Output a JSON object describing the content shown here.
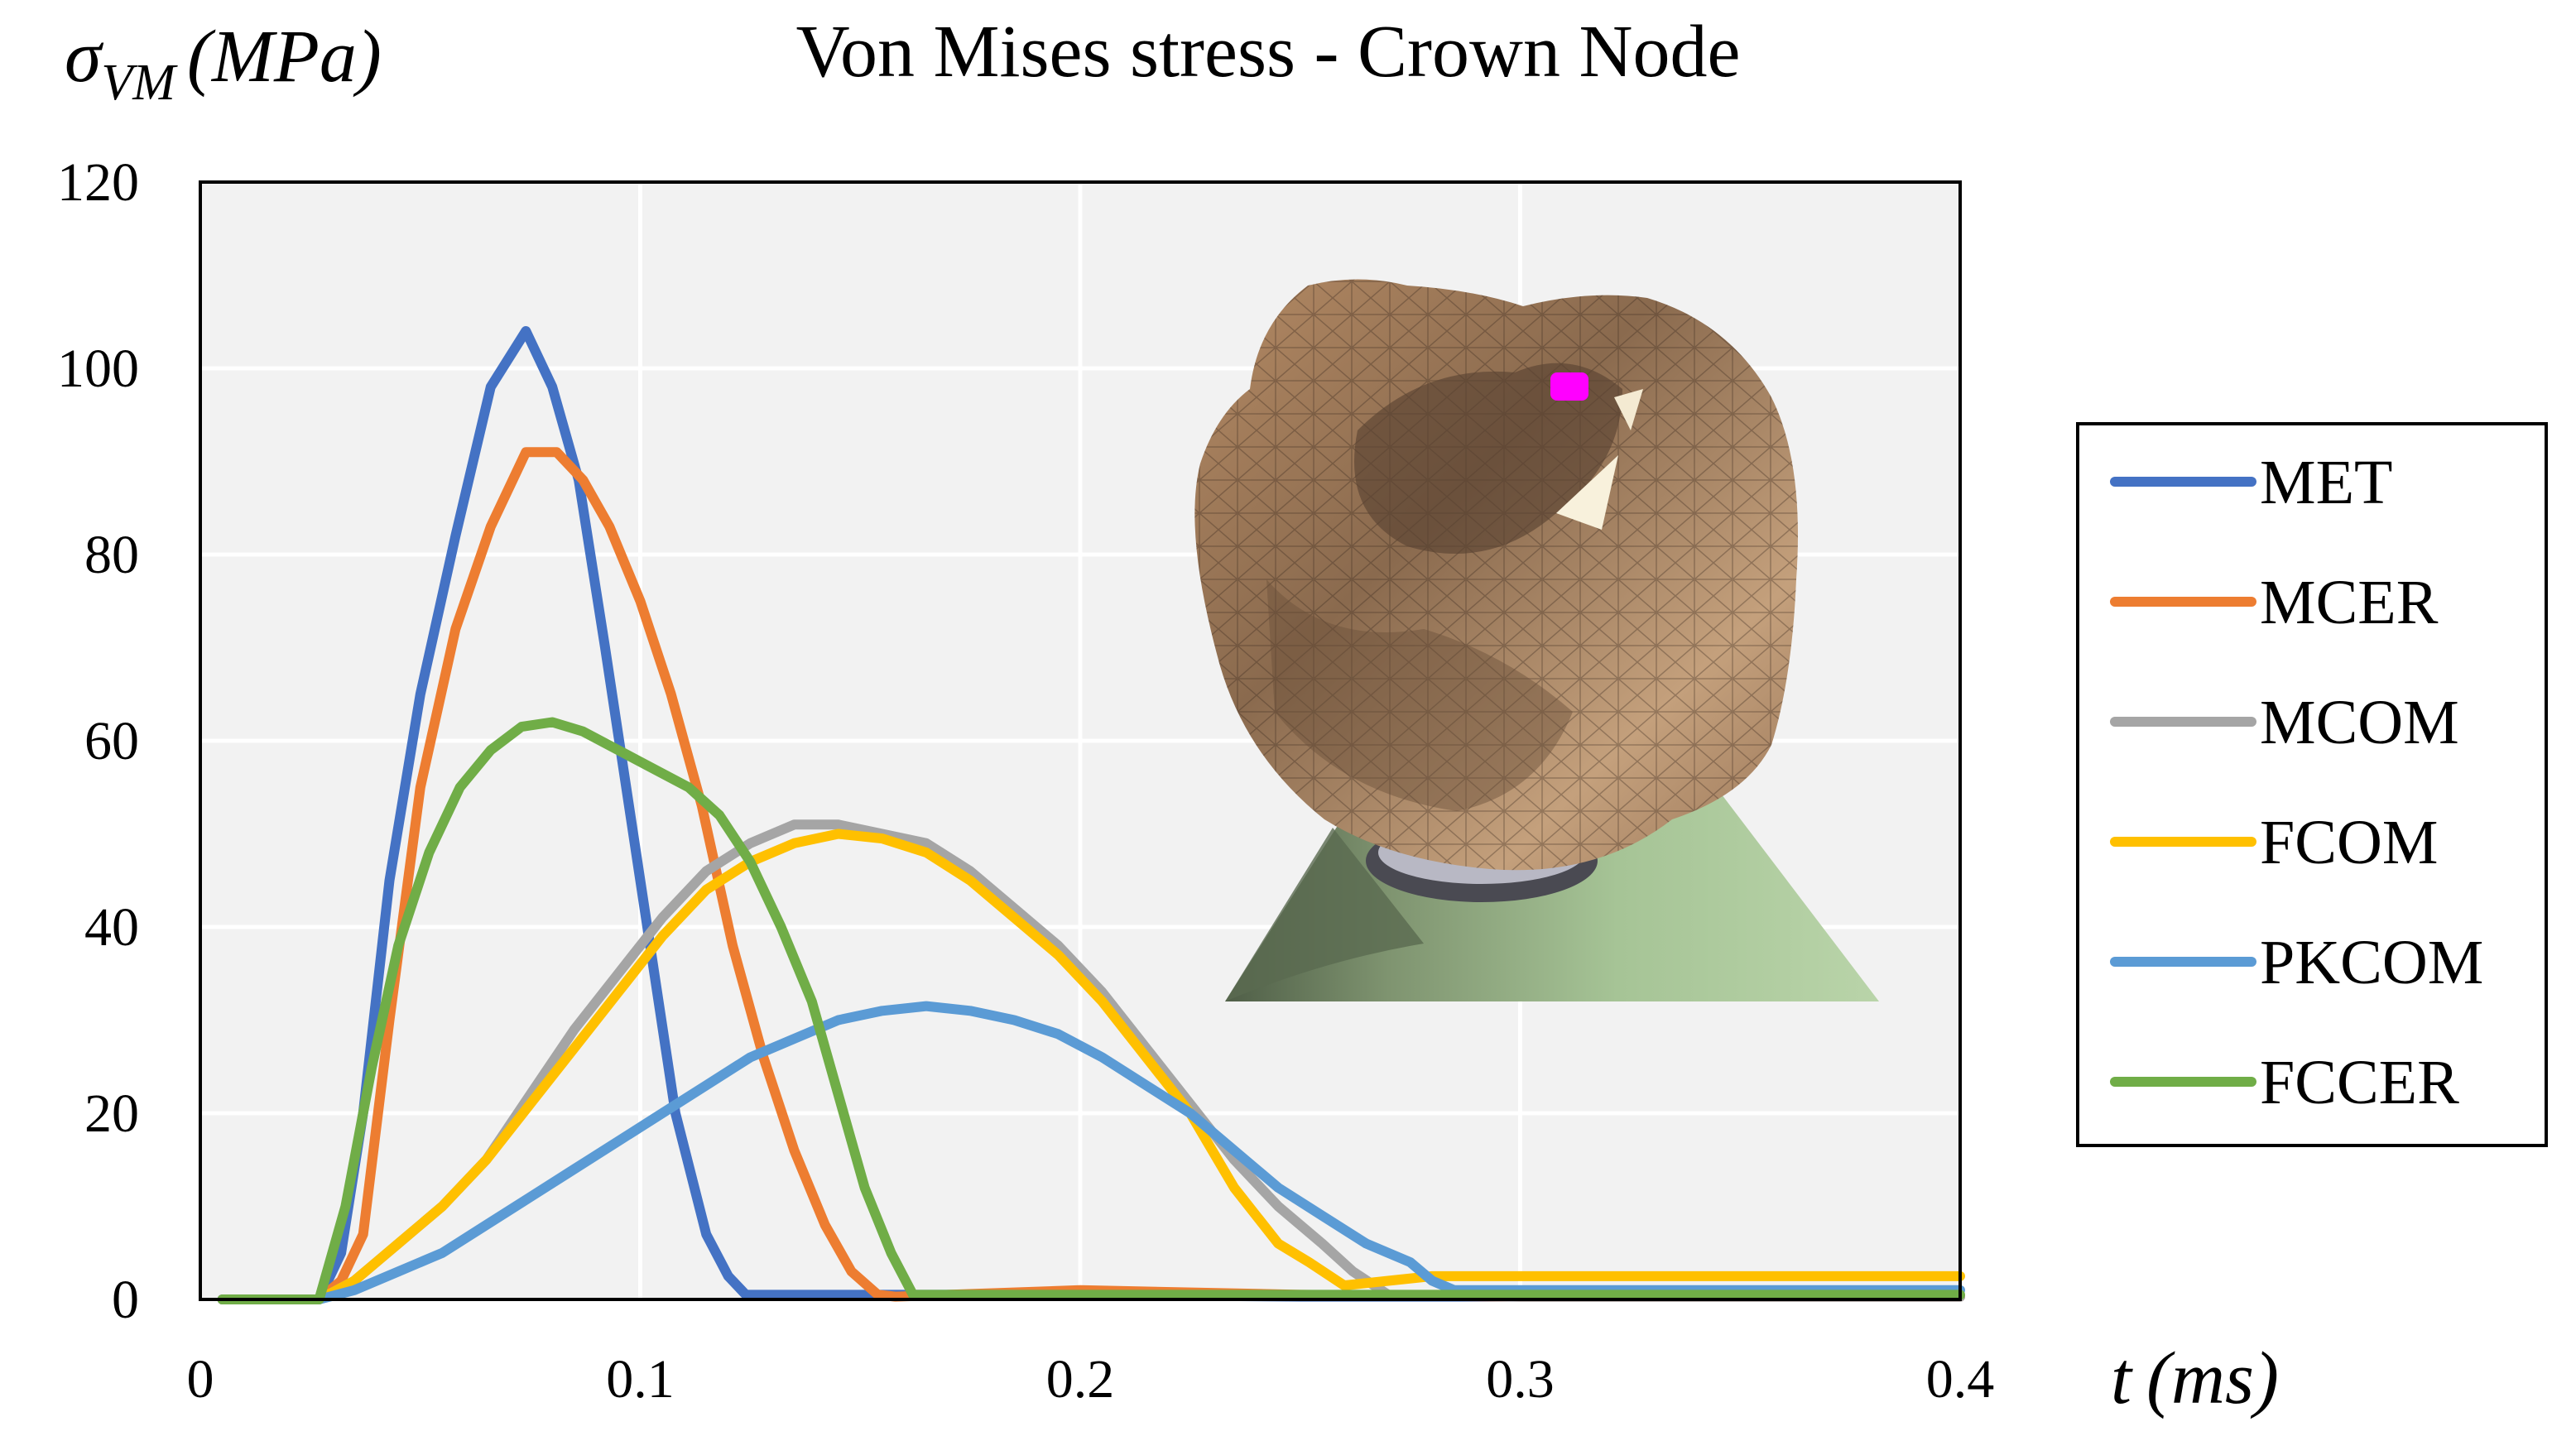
{
  "chart_data": {
    "type": "line",
    "title": "Von Mises stress - Crown Node",
    "ylabel": {
      "sigma": "σ",
      "sub": "VM",
      "unit": "(MPa)"
    },
    "xlabel": {
      "var": "t",
      "unit": "(ms)"
    },
    "xlim": [
      0,
      0.4
    ],
    "ylim": [
      0,
      120
    ],
    "x_ticks": [
      0,
      0.1,
      0.2,
      0.3,
      0.4
    ],
    "x_tick_labels": [
      "0",
      "0.1",
      "0.2",
      "0.3",
      "0.4"
    ],
    "y_ticks": [
      0,
      20,
      40,
      60,
      80,
      100,
      120
    ],
    "y_tick_labels": [
      "0",
      "20",
      "40",
      "60",
      "80",
      "100",
      "120"
    ],
    "grid": true,
    "legend_position": "right",
    "series": [
      {
        "name": "MET",
        "color": "#4472C4",
        "x": [
          0.005,
          0.027,
          0.032,
          0.037,
          0.043,
          0.05,
          0.058,
          0.066,
          0.074,
          0.08,
          0.086,
          0.092,
          0.1,
          0.108,
          0.115,
          0.12,
          0.124,
          0.13,
          0.16,
          0.2,
          0.25,
          0.3,
          0.35,
          0.4
        ],
        "y": [
          0,
          0,
          5,
          20,
          45,
          65,
          82,
          98,
          104,
          98,
          88,
          70,
          45,
          20,
          7,
          2.5,
          0.5,
          0.5,
          0.5,
          0.5,
          0.3,
          0.3,
          0.3,
          0.3
        ]
      },
      {
        "name": "MCER",
        "color": "#ED7D31",
        "x": [
          0.005,
          0.027,
          0.032,
          0.037,
          0.043,
          0.05,
          0.058,
          0.066,
          0.074,
          0.081,
          0.087,
          0.093,
          0.1,
          0.107,
          0.114,
          0.121,
          0.128,
          0.135,
          0.142,
          0.148,
          0.154,
          0.158,
          0.17,
          0.2,
          0.25,
          0.3,
          0.35,
          0.4
        ],
        "y": [
          0,
          0,
          2,
          7,
          30,
          55,
          72,
          83,
          91,
          91,
          88,
          83,
          75,
          65,
          53,
          38,
          26,
          16,
          8,
          3,
          0.5,
          0.3,
          0.5,
          1,
          0.5,
          0.3,
          0.3,
          0.3
        ]
      },
      {
        "name": "MCOM",
        "color": "#A5A5A5",
        "x": [
          0.005,
          0.027,
          0.035,
          0.045,
          0.055,
          0.065,
          0.075,
          0.085,
          0.095,
          0.105,
          0.115,
          0.125,
          0.135,
          0.145,
          0.155,
          0.165,
          0.175,
          0.185,
          0.195,
          0.205,
          0.215,
          0.225,
          0.235,
          0.245,
          0.255,
          0.262,
          0.27,
          0.3,
          0.35,
          0.4
        ],
        "y": [
          0,
          0,
          2,
          6,
          10,
          15,
          22,
          29,
          35,
          41,
          46,
          49,
          51,
          51,
          50,
          49,
          46,
          42,
          38,
          33,
          27,
          21,
          15,
          10,
          6,
          3,
          0.5,
          0.3,
          0.3,
          0.3
        ]
      },
      {
        "name": "FCOM",
        "color": "#FFC000",
        "x": [
          0.005,
          0.027,
          0.035,
          0.045,
          0.055,
          0.065,
          0.075,
          0.085,
          0.095,
          0.105,
          0.115,
          0.125,
          0.135,
          0.145,
          0.155,
          0.165,
          0.175,
          0.185,
          0.195,
          0.205,
          0.215,
          0.225,
          0.235,
          0.245,
          0.252,
          0.26,
          0.27,
          0.28,
          0.29,
          0.3,
          0.35,
          0.4
        ],
        "y": [
          0,
          0,
          2,
          6,
          10,
          15,
          21,
          27,
          33,
          39,
          44,
          47,
          49,
          50,
          49.5,
          48,
          45,
          41,
          37,
          32,
          26,
          20,
          12,
          6,
          4,
          1.5,
          2,
          2.5,
          2.5,
          2.5,
          2.5,
          2.5
        ]
      },
      {
        "name": "PKCOM",
        "color": "#5B9BD5",
        "x": [
          0.005,
          0.027,
          0.035,
          0.045,
          0.055,
          0.065,
          0.075,
          0.085,
          0.095,
          0.105,
          0.115,
          0.125,
          0.135,
          0.145,
          0.155,
          0.165,
          0.175,
          0.185,
          0.195,
          0.205,
          0.215,
          0.225,
          0.235,
          0.245,
          0.255,
          0.265,
          0.275,
          0.28,
          0.285,
          0.3,
          0.35,
          0.4
        ],
        "y": [
          0,
          0,
          1,
          3,
          5,
          8,
          11,
          14,
          17,
          20,
          23,
          26,
          28,
          30,
          31,
          31.5,
          31,
          30,
          28.5,
          26,
          23,
          20,
          16,
          12,
          9,
          6,
          4,
          2,
          1,
          1,
          1,
          1
        ]
      },
      {
        "name": "FCCER",
        "color": "#70AD47",
        "x": [
          0.005,
          0.027,
          0.033,
          0.039,
          0.045,
          0.052,
          0.059,
          0.066,
          0.073,
          0.08,
          0.087,
          0.095,
          0.103,
          0.111,
          0.118,
          0.125,
          0.132,
          0.139,
          0.145,
          0.151,
          0.157,
          0.162,
          0.17,
          0.2,
          0.25,
          0.3,
          0.35,
          0.4
        ],
        "y": [
          0,
          0,
          10,
          25,
          38,
          48,
          55,
          59,
          61.5,
          62,
          61,
          59,
          57,
          55,
          52,
          47,
          40,
          32,
          22,
          12,
          5,
          0.5,
          0.5,
          0.5,
          0.5,
          0.5,
          0.5,
          0.5
        ]
      }
    ]
  }
}
